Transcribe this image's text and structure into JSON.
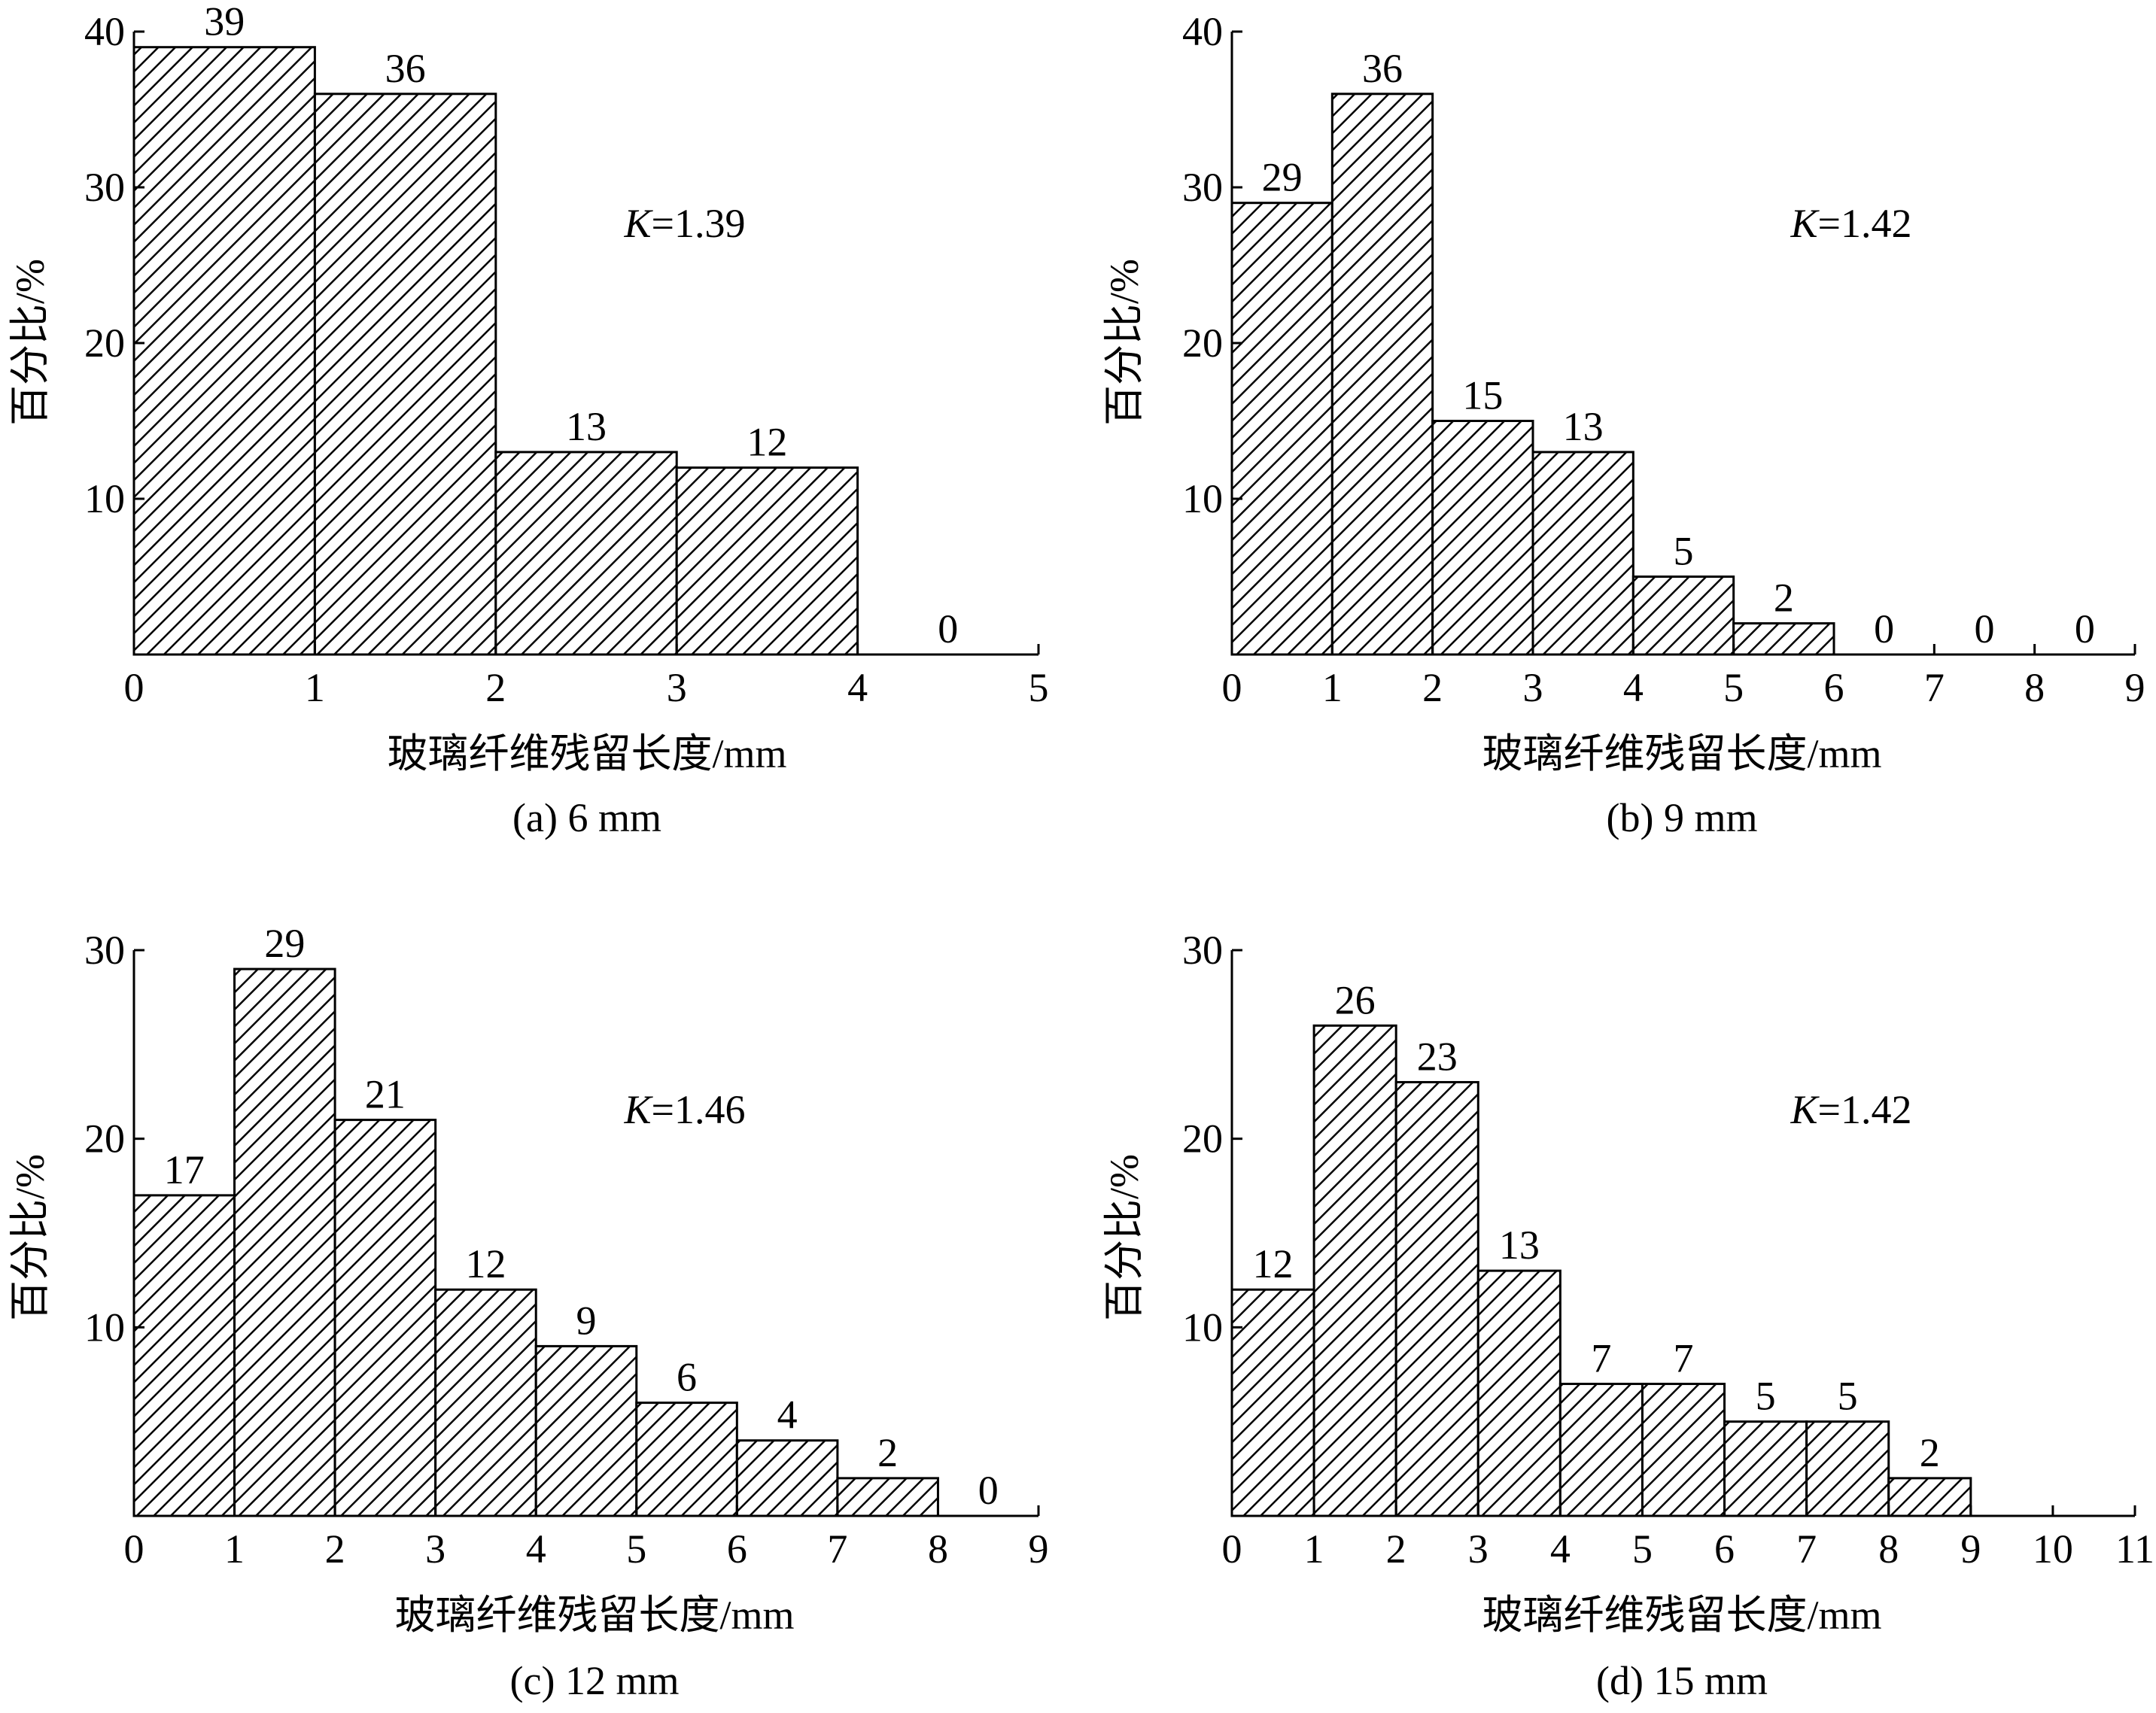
{
  "figure": {
    "panels": [
      {
        "caption": "(a) 6 mm",
        "ylabel": "百分比/%",
        "xlabel": "玻璃纤维残留长度/mm",
        "k_var": "K",
        "k_val": "=1.39"
      },
      {
        "caption": "(b) 9 mm",
        "ylabel": "百分比/%",
        "xlabel": "玻璃纤维残留长度/mm",
        "k_var": "K",
        "k_val": "=1.42"
      },
      {
        "caption": "(c) 12 mm",
        "ylabel": "百分比/%",
        "xlabel": "玻璃纤维残留长度/mm",
        "k_var": "K",
        "k_val": "=1.46"
      },
      {
        "caption": "(d) 15 mm",
        "ylabel": "百分比/%",
        "xlabel": "玻璃纤维残留长度/mm",
        "k_var": "K",
        "k_val": "=1.42"
      }
    ]
  },
  "chart_data": [
    {
      "type": "bar",
      "title": "(a) 6 mm",
      "xlabel": "玻璃纤维残留长度/mm",
      "ylabel": "百分比/%",
      "bins": [
        [
          0,
          1
        ],
        [
          1,
          2
        ],
        [
          2,
          3
        ],
        [
          3,
          4
        ],
        [
          4,
          5
        ]
      ],
      "values": [
        39,
        36,
        13,
        12,
        0
      ],
      "xlim": [
        0,
        5
      ],
      "ylim": [
        0,
        40
      ],
      "xticks": [
        0,
        1,
        2,
        3,
        4,
        5
      ],
      "yticks": [
        10,
        20,
        30,
        40
      ],
      "annotation": "K=1.39",
      "pattern": "diagonal-hatch"
    },
    {
      "type": "bar",
      "title": "(b) 9 mm",
      "xlabel": "玻璃纤维残留长度/mm",
      "ylabel": "百分比/%",
      "bins": [
        [
          0,
          1
        ],
        [
          1,
          2
        ],
        [
          2,
          3
        ],
        [
          3,
          4
        ],
        [
          4,
          5
        ],
        [
          5,
          6
        ],
        [
          6,
          7
        ],
        [
          7,
          8
        ],
        [
          8,
          9
        ]
      ],
      "values": [
        29,
        36,
        15,
        13,
        5,
        2,
        0,
        0,
        0
      ],
      "xlim": [
        0,
        9
      ],
      "ylim": [
        0,
        40
      ],
      "xticks": [
        0,
        1,
        2,
        3,
        4,
        5,
        6,
        7,
        8,
        9
      ],
      "yticks": [
        10,
        20,
        30,
        40
      ],
      "annotation": "K=1.42",
      "pattern": "diagonal-hatch"
    },
    {
      "type": "bar",
      "title": "(c) 12 mm",
      "xlabel": "玻璃纤维残留长度/mm",
      "ylabel": "百分比/%",
      "bins": [
        [
          0,
          1
        ],
        [
          1,
          2
        ],
        [
          2,
          3
        ],
        [
          3,
          4
        ],
        [
          4,
          5
        ],
        [
          5,
          6
        ],
        [
          6,
          7
        ],
        [
          7,
          8
        ],
        [
          8,
          9
        ]
      ],
      "values": [
        17,
        29,
        21,
        12,
        9,
        6,
        4,
        2,
        0
      ],
      "xlim": [
        0,
        9
      ],
      "ylim": [
        0,
        30
      ],
      "xticks": [
        0,
        1,
        2,
        3,
        4,
        5,
        6,
        7,
        8,
        9
      ],
      "yticks": [
        10,
        20,
        30
      ],
      "annotation": "K=1.46",
      "pattern": "diagonal-hatch"
    },
    {
      "type": "bar",
      "title": "(d) 15 mm",
      "xlabel": "玻璃纤维残留长度/mm",
      "ylabel": "百分比/%",
      "bins": [
        [
          0,
          1
        ],
        [
          1,
          2
        ],
        [
          2,
          3
        ],
        [
          3,
          4
        ],
        [
          4,
          5
        ],
        [
          5,
          6
        ],
        [
          6,
          7
        ],
        [
          7,
          8
        ],
        [
          8,
          9
        ]
      ],
      "values": [
        12,
        26,
        23,
        13,
        7,
        7,
        5,
        5,
        2
      ],
      "xlim": [
        0,
        11
      ],
      "ylim": [
        0,
        30
      ],
      "xticks": [
        0,
        1,
        2,
        3,
        4,
        5,
        6,
        7,
        8,
        9,
        10,
        11
      ],
      "yticks": [
        10,
        20,
        30
      ],
      "annotation": "K=1.42",
      "pattern": "diagonal-hatch"
    }
  ]
}
